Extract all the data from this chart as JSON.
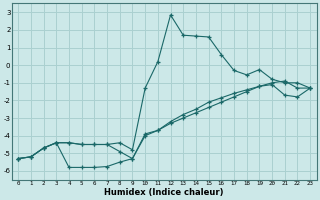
{
  "xlabel": "Humidex (Indice chaleur)",
  "xlim": [
    -0.5,
    23.5
  ],
  "ylim": [
    -6.5,
    3.5
  ],
  "xticks": [
    0,
    1,
    2,
    3,
    4,
    5,
    6,
    7,
    8,
    9,
    10,
    11,
    12,
    13,
    14,
    15,
    16,
    17,
    18,
    19,
    20,
    21,
    22,
    23
  ],
  "yticks": [
    -6,
    -5,
    -4,
    -3,
    -2,
    -1,
    0,
    1,
    2,
    3
  ],
  "background_color": "#cce8e8",
  "grid_color": "#aad0d0",
  "line_color": "#1a6868",
  "line1_x": [
    0,
    1,
    2,
    3,
    4,
    5,
    6,
    7,
    8,
    9,
    10,
    11,
    12,
    13,
    14,
    15,
    16,
    17,
    18,
    19,
    20,
    21,
    22,
    23
  ],
  "line1_y": [
    -5.3,
    -5.2,
    -4.7,
    -4.4,
    -4.4,
    -4.5,
    -4.5,
    -4.5,
    -4.4,
    -4.8,
    -1.3,
    0.2,
    2.85,
    1.7,
    1.65,
    1.6,
    0.6,
    -0.3,
    -0.55,
    -0.25,
    -0.8,
    -1.0,
    -1.0,
    -1.3
  ],
  "line2_x": [
    0,
    1,
    2,
    3,
    4,
    5,
    6,
    7,
    8,
    9,
    10,
    11,
    12,
    13,
    14,
    15,
    16,
    17,
    18,
    19,
    20,
    21,
    22,
    23
  ],
  "line2_y": [
    -5.3,
    -5.2,
    -4.7,
    -4.4,
    -4.4,
    -4.5,
    -4.5,
    -4.5,
    -4.9,
    -5.3,
    -3.9,
    -3.7,
    -3.3,
    -3.0,
    -2.7,
    -2.4,
    -2.1,
    -1.8,
    -1.5,
    -1.2,
    -1.0,
    -0.9,
    -1.3,
    -1.3
  ],
  "line3_x": [
    0,
    1,
    2,
    3,
    4,
    5,
    6,
    7,
    8,
    9,
    10,
    11,
    12,
    13,
    14,
    15,
    16,
    17,
    18,
    19,
    20,
    21,
    22,
    23
  ],
  "line3_y": [
    -5.3,
    -5.2,
    -4.7,
    -4.4,
    -5.8,
    -5.8,
    -5.8,
    -5.75,
    -5.5,
    -5.3,
    -4.0,
    -3.7,
    -3.2,
    -2.8,
    -2.5,
    -2.1,
    -1.85,
    -1.6,
    -1.4,
    -1.2,
    -1.1,
    -1.7,
    -1.8,
    -1.3
  ]
}
